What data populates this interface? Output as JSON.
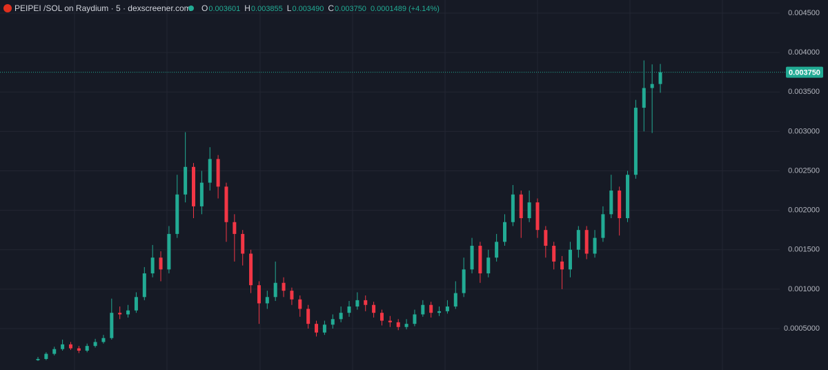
{
  "header": {
    "symbol": "PEIPEI /SOL on Raydium · 5 · dexscreener.com",
    "ohlc": [
      {
        "label": "O",
        "value": "0.003601"
      },
      {
        "label": "H",
        "value": "0.003855"
      },
      {
        "label": "L",
        "value": "0.003490"
      },
      {
        "label": "C",
        "value": "0.003750"
      }
    ],
    "change": "0.0001489 (+4.14%)"
  },
  "chart_data": {
    "type": "candlestick",
    "up_color": "#22ab94",
    "down_color": "#f23645",
    "ylim": [
      -2.5e-05,
      0.004666
    ],
    "yticks": [
      {
        "value": 0.0005,
        "label": "0.0005000"
      },
      {
        "value": 0.001,
        "label": "0.001000"
      },
      {
        "value": 0.0015,
        "label": "0.001500"
      },
      {
        "value": 0.002,
        "label": "0.002000"
      },
      {
        "value": 0.0025,
        "label": "0.002500"
      },
      {
        "value": 0.003,
        "label": "0.003000"
      },
      {
        "value": 0.0035,
        "label": "0.003500"
      },
      {
        "value": 0.004,
        "label": "0.004000"
      },
      {
        "value": 0.0045,
        "label": "0.004500"
      }
    ],
    "grid": true,
    "last_price": {
      "value": 0.00375,
      "label": "0.003750"
    },
    "open": [
      0.0001,
      0.000115,
      0.00018,
      0.00024,
      0.0003,
      0.00025,
      0.00022,
      0.00028,
      0.00033,
      0.00038,
      0.0007,
      0.00068,
      0.00073,
      0.0009,
      0.0012,
      0.0014,
      0.00125,
      0.0017,
      0.0022,
      0.00255,
      0.00205,
      0.00235,
      0.00265,
      0.0023,
      0.00185,
      0.0017,
      0.00145,
      0.00105,
      0.00082,
      0.0009,
      0.00108,
      0.00098,
      0.00087,
      0.00075,
      0.00056,
      0.00045,
      0.00055,
      0.00062,
      0.0007,
      0.00078,
      0.00086,
      0.0008,
      0.0007,
      0.0006,
      0.00058,
      0.00052,
      0.00056,
      0.00068,
      0.0008,
      0.0007,
      0.00072,
      0.00078,
      0.00095,
      0.00125,
      0.00155,
      0.0012,
      0.0014,
      0.0016,
      0.00185,
      0.0022,
      0.0019,
      0.0021,
      0.00175,
      0.00155,
      0.00135,
      0.00125,
      0.0015,
      0.00175,
      0.00145,
      0.00165,
      0.00195,
      0.00225,
      0.0019,
      0.00245,
      0.0033,
      0.00355,
      0.003601
    ],
    "high": [
      0.00014,
      0.0002,
      0.00027,
      0.00036,
      0.00033,
      0.00028,
      0.00031,
      0.00037,
      0.00042,
      0.00088,
      0.00078,
      0.0008,
      0.00096,
      0.00128,
      0.00156,
      0.00148,
      0.0018,
      0.00245,
      0.00299,
      0.0026,
      0.0025,
      0.0028,
      0.0027,
      0.00235,
      0.00195,
      0.00175,
      0.0015,
      0.0011,
      0.00098,
      0.00135,
      0.00115,
      0.00102,
      0.00092,
      0.0008,
      0.0006,
      0.0006,
      0.00068,
      0.00078,
      0.00085,
      0.00096,
      0.00092,
      0.00084,
      0.00074,
      0.00066,
      0.00062,
      0.00062,
      0.00074,
      0.00086,
      0.00084,
      0.00078,
      0.00086,
      0.0011,
      0.0014,
      0.00165,
      0.0016,
      0.0015,
      0.0017,
      0.00195,
      0.00232,
      0.00225,
      0.00225,
      0.00215,
      0.0018,
      0.0016,
      0.00142,
      0.0016,
      0.0018,
      0.0018,
      0.00175,
      0.00205,
      0.00245,
      0.0023,
      0.0025,
      0.0034,
      0.0039,
      0.00385,
      0.003855
    ],
    "low": [
      9e-05,
      0.0001,
      0.00016,
      0.00022,
      0.00023,
      0.00019,
      0.0002,
      0.00026,
      0.00031,
      0.00036,
      0.00062,
      0.00064,
      0.0007,
      0.00086,
      0.00115,
      0.0011,
      0.0012,
      0.00165,
      0.0021,
      0.0019,
      0.00195,
      0.00225,
      0.00215,
      0.0016,
      0.00135,
      0.0013,
      0.00095,
      0.00056,
      0.00075,
      0.00085,
      0.0009,
      0.0008,
      0.00065,
      0.0005,
      0.0004,
      0.00042,
      0.0005,
      0.00058,
      0.00065,
      0.00074,
      0.00072,
      0.00064,
      0.00054,
      0.00052,
      0.00048,
      0.00049,
      0.00053,
      0.00065,
      0.00064,
      0.00066,
      0.00069,
      0.00075,
      0.0009,
      0.0012,
      0.00108,
      0.00115,
      0.00135,
      0.00155,
      0.0018,
      0.00165,
      0.00185,
      0.00165,
      0.0014,
      0.00125,
      0.001,
      0.00115,
      0.0014,
      0.00138,
      0.0014,
      0.0016,
      0.0019,
      0.00168,
      0.00185,
      0.0024,
      0.003,
      0.00298,
      0.00349
    ],
    "close": [
      0.000115,
      0.00018,
      0.00024,
      0.0003,
      0.00025,
      0.00022,
      0.00028,
      0.00033,
      0.00038,
      0.0007,
      0.00068,
      0.00073,
      0.0009,
      0.0012,
      0.0014,
      0.00125,
      0.0017,
      0.0022,
      0.00255,
      0.00205,
      0.00235,
      0.00265,
      0.0023,
      0.00185,
      0.0017,
      0.00145,
      0.00105,
      0.00082,
      0.0009,
      0.00108,
      0.00098,
      0.00087,
      0.00075,
      0.00056,
      0.00045,
      0.00055,
      0.00062,
      0.0007,
      0.00078,
      0.00086,
      0.0008,
      0.0007,
      0.0006,
      0.00058,
      0.00052,
      0.00056,
      0.00068,
      0.0008,
      0.0007,
      0.00072,
      0.00078,
      0.00095,
      0.00125,
      0.00155,
      0.0012,
      0.0014,
      0.0016,
      0.00185,
      0.0022,
      0.0019,
      0.0021,
      0.00175,
      0.00155,
      0.00135,
      0.00125,
      0.0015,
      0.00175,
      0.00145,
      0.00165,
      0.00195,
      0.00225,
      0.0019,
      0.00245,
      0.0033,
      0.00355,
      0.003601,
      0.00375
    ]
  }
}
